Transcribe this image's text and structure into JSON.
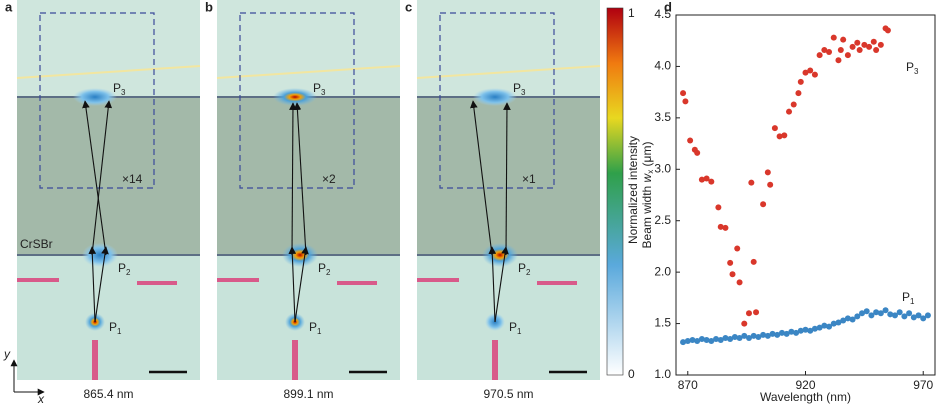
{
  "panels": [
    {
      "label": "a",
      "caption": "865.4 nm",
      "magnification": "×14",
      "spots": [
        "P",
        "1",
        "P",
        "2",
        "P",
        "3"
      ]
    },
    {
      "label": "b",
      "caption": "899.1 nm",
      "magnification": "×2",
      "spots": [
        "P",
        "1",
        "P",
        "2",
        "P",
        "3"
      ]
    },
    {
      "label": "c",
      "caption": "970.5 nm",
      "magnification": "×1",
      "spots": [
        "P",
        "1",
        "P",
        "2",
        "P",
        "3"
      ]
    }
  ],
  "material": "CrSBr",
  "axes_labels": [
    "y",
    "x"
  ],
  "colorbar": {
    "label": "Normalized intensity",
    "top": "1",
    "bottom": "0"
  },
  "chart_data": {
    "type": "scatter",
    "panel_label": "d",
    "x_label": "Wavelength (nm)",
    "y_label": {
      "text": "Beam width ",
      "var": "w",
      "sub": "x",
      "unit": " (μm)"
    },
    "xlim": [
      865,
      975
    ],
    "xticks": [
      870,
      920,
      970
    ],
    "ylim": [
      1.0,
      4.5
    ],
    "yticks": [
      {
        "value": 1,
        "label": "1.0"
      },
      1.5,
      {
        "value": 2,
        "label": "2.0"
      },
      2.5,
      {
        "value": 3,
        "label": "3.0"
      },
      3.5,
      {
        "value": 4,
        "label": "4.0"
      },
      4.5
    ],
    "series": [
      {
        "name": "P3",
        "label_main": "P",
        "label_sub": "3",
        "color": "#d9372b",
        "x": [
          868,
          869,
          871,
          873,
          874,
          876,
          878,
          880,
          883,
          884,
          886,
          888,
          889,
          891,
          892,
          894,
          896,
          897,
          898,
          899,
          902,
          904,
          905,
          907,
          909,
          911,
          913,
          915,
          917,
          918,
          920,
          922,
          924,
          926,
          928,
          930,
          932,
          934,
          935,
          936,
          938,
          940,
          942,
          943,
          945,
          947,
          949,
          950,
          952,
          954,
          955
        ],
        "values": [
          3.74,
          3.66,
          3.28,
          3.19,
          3.16,
          2.9,
          2.91,
          2.88,
          2.63,
          2.44,
          2.43,
          2.09,
          1.98,
          2.23,
          1.9,
          1.5,
          1.6,
          2.87,
          2.1,
          1.61,
          2.66,
          2.97,
          2.85,
          3.4,
          3.32,
          3.33,
          3.56,
          3.63,
          3.74,
          3.85,
          3.94,
          3.96,
          3.92,
          4.11,
          4.16,
          4.14,
          4.28,
          4.06,
          4.16,
          4.26,
          4.11,
          4.19,
          4.23,
          4.16,
          4.21,
          4.19,
          4.24,
          4.16,
          4.21,
          4.37,
          4.35
        ]
      },
      {
        "name": "P1",
        "label_main": "P",
        "label_sub": "1",
        "color": "#3b86c4",
        "x": [
          868,
          870,
          872,
          874,
          876,
          878,
          880,
          882,
          884,
          886,
          888,
          890,
          892,
          894,
          896,
          898,
          900,
          902,
          904,
          906,
          908,
          910,
          912,
          914,
          916,
          918,
          920,
          922,
          924,
          926,
          928,
          930,
          932,
          934,
          936,
          938,
          940,
          942,
          944,
          946,
          948,
          950,
          952,
          954,
          956,
          958,
          960,
          962,
          964,
          966,
          968,
          970,
          972
        ],
        "values": [
          1.32,
          1.33,
          1.34,
          1.33,
          1.35,
          1.34,
          1.33,
          1.35,
          1.34,
          1.36,
          1.35,
          1.37,
          1.36,
          1.38,
          1.36,
          1.38,
          1.37,
          1.39,
          1.38,
          1.4,
          1.39,
          1.41,
          1.4,
          1.42,
          1.41,
          1.43,
          1.44,
          1.43,
          1.45,
          1.46,
          1.48,
          1.47,
          1.5,
          1.51,
          1.53,
          1.55,
          1.54,
          1.57,
          1.6,
          1.62,
          1.58,
          1.61,
          1.6,
          1.63,
          1.59,
          1.58,
          1.61,
          1.57,
          1.6,
          1.56,
          1.58,
          1.55,
          1.58
        ]
      }
    ]
  }
}
